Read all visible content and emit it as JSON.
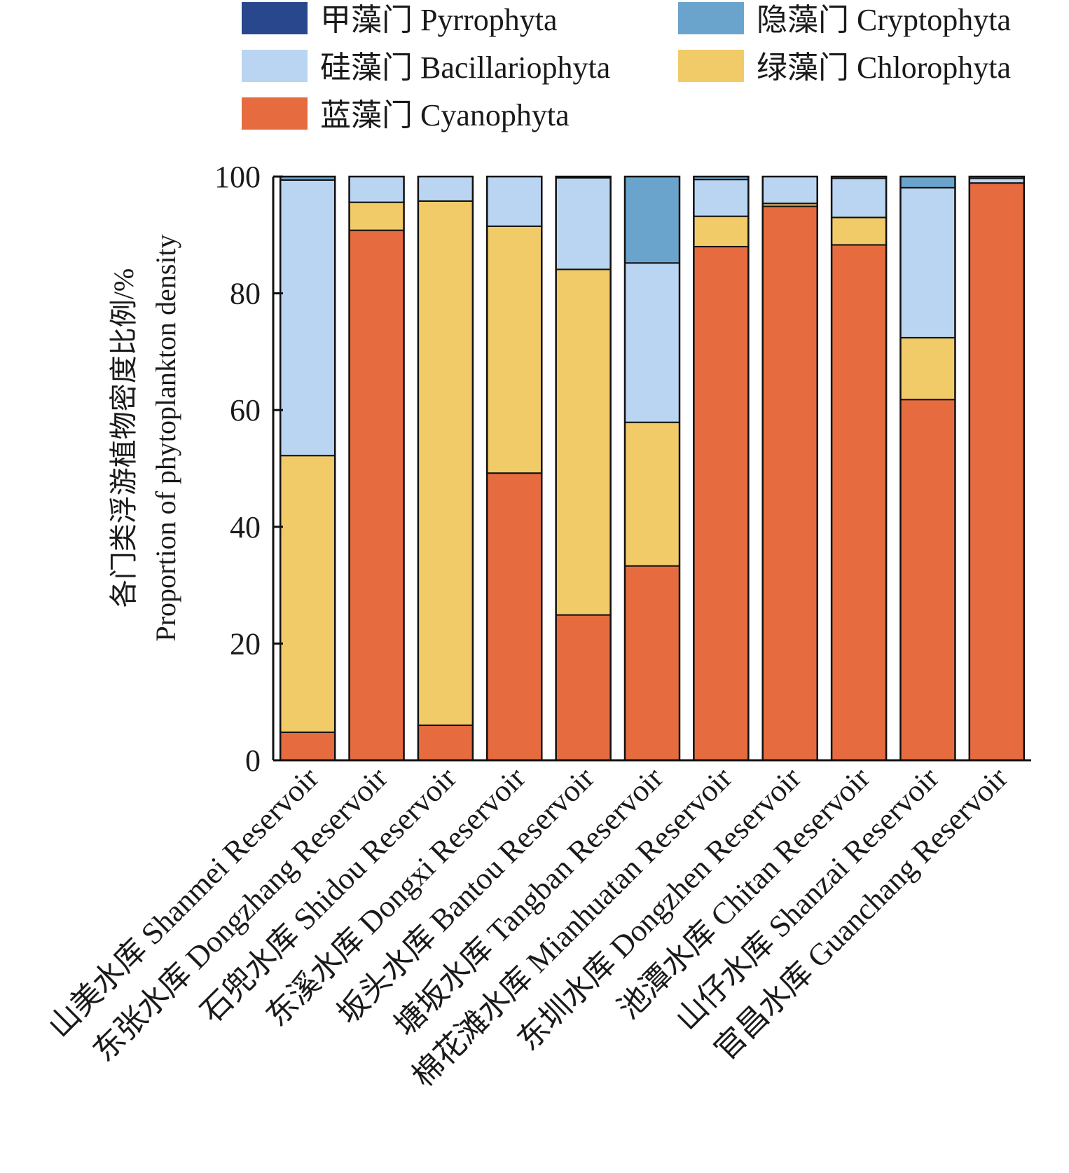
{
  "chart_data": {
    "type": "bar",
    "stacked": true,
    "title": "",
    "ylabel": [
      "各门类浮游植物密度比例/%",
      "Proportion of phytoplankton density"
    ],
    "xlabel": "",
    "ylim": [
      0,
      100
    ],
    "yticks": [
      "0",
      "20",
      "40",
      "60",
      "80",
      "100"
    ],
    "legend_position": "top",
    "categories": [
      "山美水库 Shanmei Reservoir",
      "东张水库 Dongzhang Reservoir",
      "石兜水库 Shidou Reservoir",
      "东溪水库 Dongxi Reservoir",
      "坂头水库 Bantou Reservoir",
      "塘坂水库 Tangban Reservoir",
      "棉花滩水库 Mianhuatan Reservoir",
      "东圳水库 Dongzhen Reservoir",
      "池潭水库 Chitan Reservoir",
      "山仔水库 Shanzai Reservoir",
      "官昌水库 Guanchang Reservoir"
    ],
    "series": [
      {
        "name": "蓝藻门 Cyanophyta",
        "color": "#E66C40",
        "values": [
          4.8,
          90.8,
          6.0,
          49.2,
          24.9,
          33.3,
          88.0,
          94.9,
          88.3,
          61.8,
          98.9
        ]
      },
      {
        "name": "绿藻门 Chlorophyta",
        "color": "#F2CB69",
        "values": [
          47.4,
          4.8,
          89.8,
          42.3,
          59.2,
          24.6,
          5.2,
          0.5,
          4.7,
          10.6,
          0.0
        ]
      },
      {
        "name": "硅藻门 Bacillariophyta",
        "color": "#BAD5F2",
        "values": [
          47.2,
          4.4,
          4.2,
          8.5,
          15.7,
          27.3,
          6.3,
          4.6,
          6.7,
          25.7,
          0.8
        ]
      },
      {
        "name": "隐藻门 Cryptophyta",
        "color": "#6AA4CD",
        "values": [
          0.6,
          0.0,
          0.0,
          0.0,
          0.2,
          14.8,
          0.5,
          0.0,
          0.3,
          1.9,
          0.3
        ]
      },
      {
        "name": "甲藻门 Pyrrophyta",
        "color": "#28478D",
        "values": [
          0.0,
          0.0,
          0.0,
          0.0,
          0.0,
          0.0,
          0.0,
          0.0,
          0.0,
          0.0,
          0.0
        ]
      }
    ],
    "legend_order": [
      4,
      3,
      2,
      1,
      0
    ]
  }
}
